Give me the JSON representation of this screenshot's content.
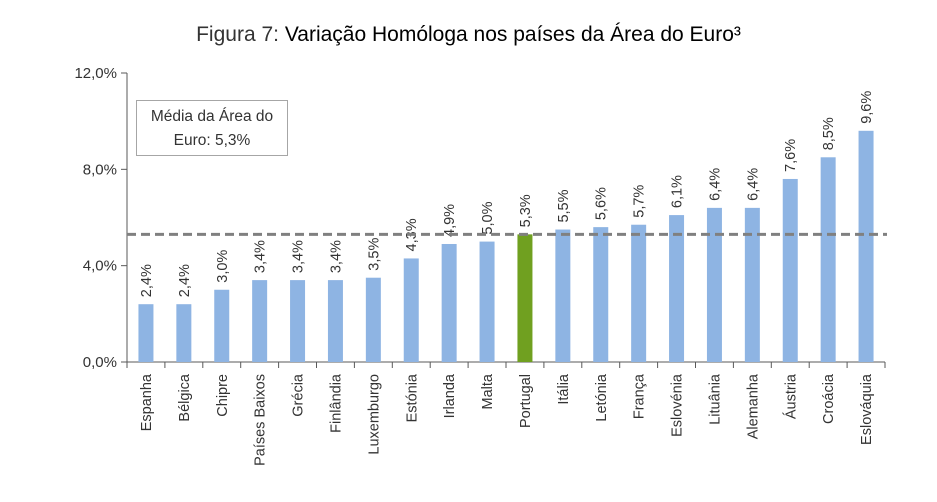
{
  "chart_data": {
    "type": "bar",
    "title_prefix": "Figura 7:",
    "title": "Variação Homóloga nos países da Área do Euro³",
    "categories": [
      "Espanha",
      "Bélgica",
      "Chipre",
      "Países Baixos",
      "Grécia",
      "Finlândia",
      "Luxemburgo",
      "Estónia",
      "Irlanda",
      "Malta",
      "Portugal",
      "Itália",
      "Letónia",
      "França",
      "Eslovénia",
      "Lituânia",
      "Alemanha",
      "Áustria",
      "Croácia",
      "Eslováquia"
    ],
    "values": [
      2.4,
      2.4,
      3.0,
      3.4,
      3.4,
      3.4,
      3.5,
      4.3,
      4.9,
      5.0,
      5.3,
      5.5,
      5.6,
      5.7,
      6.1,
      6.4,
      6.4,
      7.6,
      8.5,
      9.6
    ],
    "value_labels": [
      "2,4%",
      "2,4%",
      "3,0%",
      "3,4%",
      "3,4%",
      "3,4%",
      "3,5%",
      "4,3%",
      "4,9%",
      "5,0%",
      "5,3%",
      "5,5%",
      "5,6%",
      "5,7%",
      "6,1%",
      "6,4%",
      "6,4%",
      "7,6%",
      "8,5%",
      "9,6%"
    ],
    "highlight_category": "Portugal",
    "ylim": [
      0,
      12
    ],
    "yticks": [
      0,
      4,
      8,
      12
    ],
    "ytick_labels": [
      "0,0%",
      "4,0%",
      "8,0%",
      "12,0%"
    ],
    "reference_line": {
      "value": 5.3,
      "label_line1": "Média da Área do",
      "label_line2": "Euro: 5,3%"
    },
    "colors": {
      "bar": "#8eb4e3",
      "highlight": "#70a020",
      "reference": "#808080",
      "axis": "#595959"
    },
    "grid": false,
    "legend": "top-left"
  }
}
